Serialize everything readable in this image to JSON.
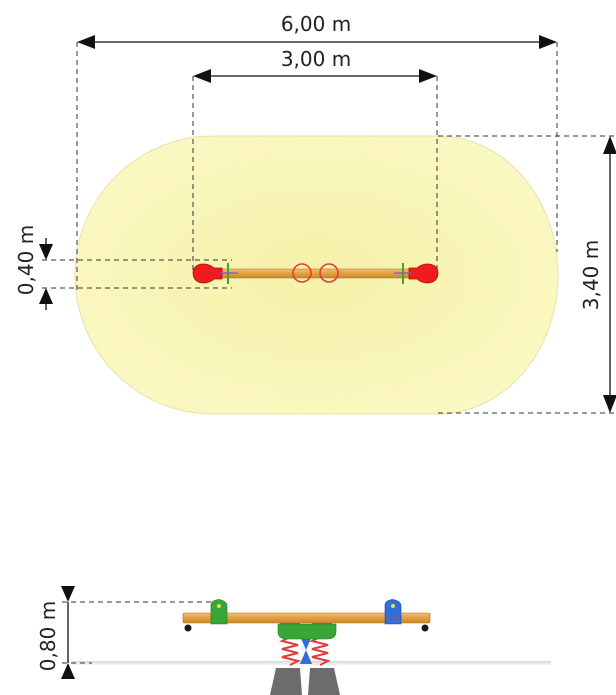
{
  "dimensions": {
    "overall_width": "6,00 m",
    "seat_span": "3,00 m",
    "overall_depth": "3,40 m",
    "beam_width": "0,40 m",
    "seat_height": "0,80 m"
  },
  "colors": {
    "safety_zone": "#fbf7bc",
    "beam_wood": "#e5a84a",
    "seat_red": "#ee1c1c",
    "handle_green": "#3aa63a",
    "handle_blue": "#2f6fd6",
    "spring_red": "#e33a3a",
    "base_grey": "#6c6c6c"
  }
}
